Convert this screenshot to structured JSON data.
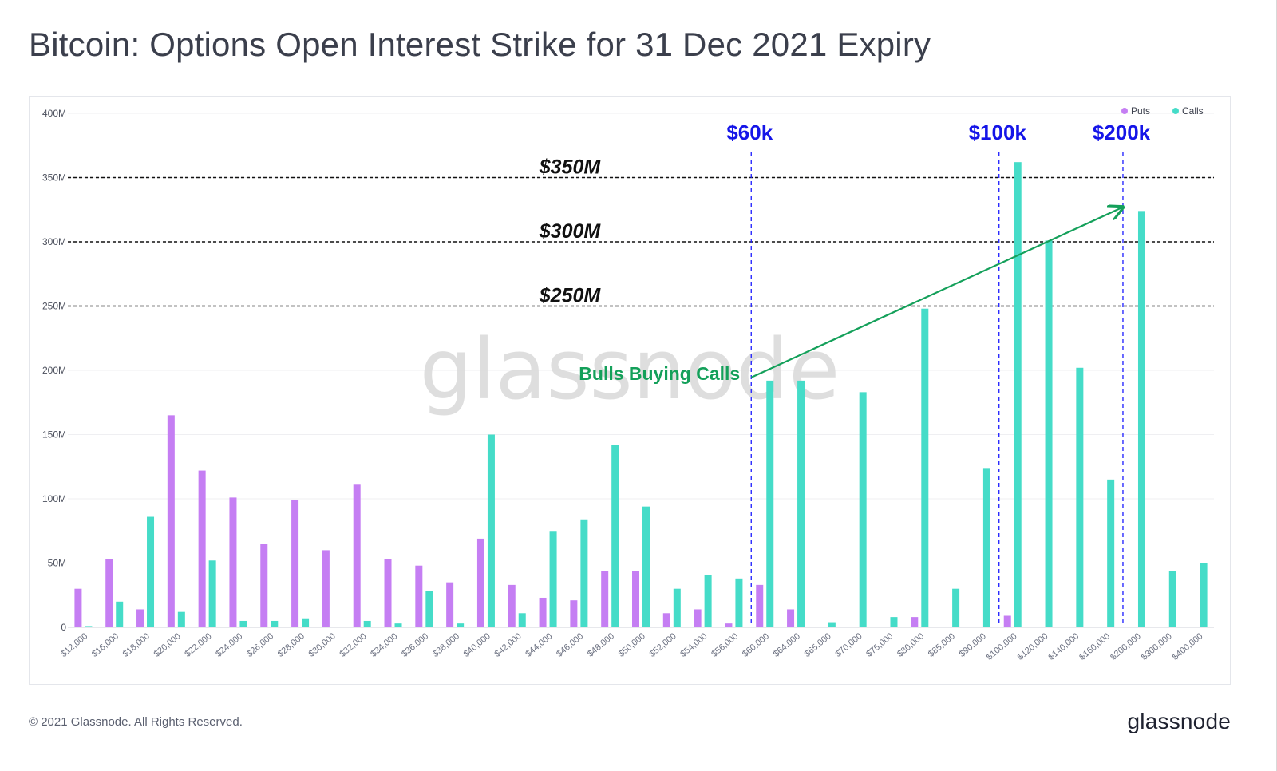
{
  "title": "Bitcoin: Options Open Interest Strike for 31 Dec 2021 Expiry",
  "footer": {
    "copyright": "© 2021 Glassnode. All Rights Reserved.",
    "logo": "glassnode"
  },
  "watermark": "glassnode",
  "chart_data": {
    "type": "bar",
    "title": "Bitcoin: Options Open Interest Strike for 31 Dec 2021 Expiry",
    "xlabel": "",
    "ylabel": "",
    "ylim": [
      0,
      400
    ],
    "y_ticks": [
      0,
      50,
      100,
      150,
      200,
      250,
      300,
      350,
      400
    ],
    "y_tick_labels": [
      "0",
      "50M",
      "100M",
      "150M",
      "200M",
      "250M",
      "300M",
      "350M",
      "400M"
    ],
    "categories": [
      "$12,000",
      "$16,000",
      "$18,000",
      "$20,000",
      "$22,000",
      "$24,000",
      "$26,000",
      "$28,000",
      "$30,000",
      "$32,000",
      "$34,000",
      "$36,000",
      "$38,000",
      "$40,000",
      "$42,000",
      "$44,000",
      "$46,000",
      "$48,000",
      "$50,000",
      "$52,000",
      "$54,000",
      "$56,000",
      "$60,000",
      "$64,000",
      "$65,000",
      "$70,000",
      "$75,000",
      "$80,000",
      "$85,000",
      "$90,000",
      "$100,000",
      "$120,000",
      "$140,000",
      "$160,000",
      "$200,000",
      "$300,000",
      "$400,000"
    ],
    "series": [
      {
        "name": "Puts",
        "color": "#c57ef3",
        "values": [
          30,
          53,
          14,
          165,
          122,
          101,
          65,
          99,
          60,
          111,
          53,
          48,
          35,
          69,
          33,
          23,
          21,
          44,
          44,
          11,
          14,
          3,
          33,
          14,
          0,
          0,
          0,
          8,
          0,
          0,
          9,
          0,
          0,
          0,
          0,
          0,
          0
        ]
      },
      {
        "name": "Calls",
        "color": "#45dcc8",
        "values": [
          1,
          20,
          86,
          12,
          52,
          5,
          5,
          7,
          0,
          5,
          3,
          28,
          3,
          150,
          11,
          75,
          84,
          142,
          94,
          30,
          41,
          38,
          192,
          192,
          4,
          183,
          8,
          248,
          30,
          124,
          362,
          301,
          202,
          115,
          324,
          44,
          50
        ]
      }
    ],
    "legend_position": "top-right",
    "annotations": {
      "hlines": [
        {
          "value": 350,
          "label": "$350M"
        },
        {
          "value": 300,
          "label": "$300M"
        },
        {
          "value": 250,
          "label": "$250M"
        }
      ],
      "vlines": [
        {
          "category": "$60,000",
          "label": "$60k"
        },
        {
          "category": "$100,000",
          "label": "$100k"
        },
        {
          "category": "$200,000",
          "label": "$200k"
        }
      ],
      "arrow": {
        "label": "Bulls Buying Calls",
        "from": {
          "category": "$60,000",
          "value": 192
        },
        "to": {
          "category": "$200,000",
          "value": 327
        }
      }
    }
  }
}
